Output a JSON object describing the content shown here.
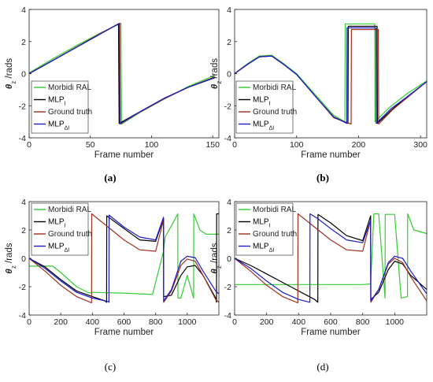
{
  "panels": [
    {
      "caption": "(a)"
    },
    {
      "caption": "(b)"
    },
    {
      "caption": "(c)"
    },
    {
      "caption": "(d)"
    }
  ],
  "colors": {
    "morbidi": "#33cc33",
    "mlp_i": "#000000",
    "ground_truth": "#a0301c",
    "mlp_di": "#1a1acc",
    "pink": "#ff5577"
  },
  "chart_data": [
    {
      "type": "line",
      "xlabel": "Frame number",
      "ylabel": "θz /rads",
      "xlim": [
        0,
        155
      ],
      "ylim": [
        -4,
        4
      ],
      "xticks": [
        0,
        50,
        100,
        150
      ],
      "yticks": [
        -4,
        -2,
        0,
        2,
        4
      ],
      "legend_position": "bottom-left",
      "series": [
        {
          "name": "Morbidi RAL",
          "key": "morbidi",
          "x": [
            0,
            20,
            40,
            60,
            75,
            75.5,
            90,
            110,
            130,
            152
          ],
          "y": [
            0.05,
            0.95,
            1.8,
            2.6,
            3.14,
            -3.14,
            -2.45,
            -1.6,
            -0.8,
            -0.1
          ]
        },
        {
          "name": "MLP_I",
          "key": "mlp_i",
          "x": [
            0,
            20,
            40,
            60,
            73,
            73.5,
            90,
            110,
            130,
            152
          ],
          "y": [
            0.0,
            0.85,
            1.7,
            2.55,
            3.1,
            -3.1,
            -2.4,
            -1.55,
            -0.85,
            -0.25
          ]
        },
        {
          "name": "Ground truth",
          "key": "ground_truth",
          "x": [
            0,
            20,
            40,
            60,
            74,
            74.5,
            90,
            110,
            130,
            152
          ],
          "y": [
            0.0,
            0.85,
            1.72,
            2.58,
            3.14,
            -3.14,
            -2.42,
            -1.58,
            -0.85,
            -0.2
          ]
        },
        {
          "name": "MLP_ΔI",
          "key": "mlp_di",
          "x": [
            0,
            20,
            40,
            60,
            73.5,
            74,
            90,
            110,
            130,
            152
          ],
          "y": [
            0.0,
            0.85,
            1.7,
            2.55,
            3.12,
            -3.12,
            -2.4,
            -1.55,
            -0.85,
            -0.22
          ]
        }
      ]
    },
    {
      "type": "line",
      "xlabel": "Frame number",
      "ylabel": "θz /rads",
      "xlim": [
        0,
        310
      ],
      "ylim": [
        -4,
        4
      ],
      "xticks": [
        0,
        100,
        200,
        300
      ],
      "yticks": [
        -4,
        -2,
        0,
        2,
        4
      ],
      "legend_position": "bottom-left",
      "series": [
        {
          "name": "Morbidi RAL",
          "key": "morbidi",
          "x": [
            0,
            20,
            40,
            60,
            80,
            100,
            130,
            160,
            178,
            178.5,
            226,
            226.5,
            250,
            280,
            310
          ],
          "y": [
            0.0,
            0.6,
            1.1,
            1.15,
            0.6,
            0.0,
            -1.3,
            -2.6,
            -3.0,
            3.1,
            3.1,
            -3.0,
            -2.1,
            -1.2,
            -0.45
          ]
        },
        {
          "name": "MLP_I",
          "key": "mlp_i",
          "x": [
            0,
            20,
            40,
            60,
            80,
            100,
            130,
            160,
            183,
            183.5,
            230,
            230.5,
            255,
            280,
            310
          ],
          "y": [
            0.0,
            0.55,
            1.05,
            1.1,
            0.55,
            -0.05,
            -1.4,
            -2.7,
            -3.1,
            2.95,
            2.95,
            -3.1,
            -2.2,
            -1.4,
            -0.5
          ]
        },
        {
          "name": "Ground truth",
          "key": "ground_truth",
          "x": [
            0,
            20,
            40,
            60,
            80,
            100,
            130,
            160,
            188,
            188.5,
            232,
            232.5,
            255,
            280,
            310
          ],
          "y": [
            0.0,
            0.55,
            1.05,
            1.1,
            0.55,
            -0.05,
            -1.4,
            -2.75,
            -3.14,
            2.75,
            2.75,
            -3.14,
            -2.25,
            -1.45,
            -0.5
          ]
        },
        {
          "name": "MLP_ΔI",
          "key": "mlp_di",
          "x": [
            0,
            20,
            40,
            60,
            80,
            100,
            130,
            160,
            181,
            181.5,
            228,
            228.5,
            252,
            280,
            310
          ],
          "y": [
            0.0,
            0.55,
            1.05,
            1.1,
            0.55,
            -0.05,
            -1.4,
            -2.7,
            -3.1,
            2.85,
            2.85,
            -3.1,
            -2.2,
            -1.4,
            -0.5
          ]
        }
      ]
    },
    {
      "type": "line",
      "xlabel": "Frame number",
      "ylabel": "θz /rads",
      "xlim": [
        0,
        1200
      ],
      "ylim": [
        -4,
        4
      ],
      "xticks": [
        0,
        200,
        400,
        600,
        800,
        1000
      ],
      "yticks": [
        -4,
        -2,
        0,
        2,
        4
      ],
      "legend_position": "top-left",
      "series": [
        {
          "name": "Morbidi RAL",
          "key": "morbidi",
          "x": [
            0,
            150,
            200,
            300,
            380,
            400,
            600,
            780,
            850,
            860,
            900,
            940,
            941,
            960,
            1000,
            1040,
            1041,
            1080,
            1120,
            1200
          ],
          "y": [
            -0.55,
            -0.55,
            -1.0,
            -2.0,
            -2.45,
            -2.4,
            -2.45,
            -2.55,
            0.5,
            1.5,
            2.3,
            3.14,
            -2.8,
            -2.8,
            -1.2,
            -2.8,
            3.14,
            2.0,
            1.7,
            1.7
          ]
        },
        {
          "name": "MLP_I",
          "key": "mlp_i",
          "x": [
            0,
            100,
            200,
            300,
            400,
            480,
            490,
            491,
            600,
            700,
            800,
            850,
            851,
            900,
            960,
            1000,
            1050,
            1100,
            1180,
            1185,
            1186,
            1200
          ],
          "y": [
            0.0,
            -0.6,
            -1.5,
            -2.3,
            -2.7,
            -3.0,
            -3.1,
            3.0,
            2.1,
            1.3,
            1.2,
            2.8,
            -2.7,
            -2.6,
            -1.2,
            -0.6,
            -0.5,
            -1.2,
            -2.8,
            -3.1,
            3.14,
            3.14
          ]
        },
        {
          "name": "Ground truth",
          "key": "ground_truth",
          "x": [
            0,
            100,
            200,
            300,
            395,
            396,
            500,
            600,
            700,
            800,
            850,
            851,
            900,
            960,
            1000,
            1050,
            1100,
            1180,
            1200
          ],
          "y": [
            0.0,
            -0.9,
            -1.9,
            -2.7,
            -3.14,
            3.14,
            2.2,
            1.3,
            0.6,
            0.5,
            2.7,
            -3.1,
            -2.3,
            -0.5,
            -0.05,
            -0.2,
            -1.2,
            -2.9,
            -3.1
          ]
        },
        {
          "name": "MLP_ΔI",
          "key": "mlp_di",
          "x": [
            0,
            100,
            200,
            300,
            400,
            500,
            505,
            506,
            600,
            700,
            800,
            850,
            851,
            900,
            960,
            1000,
            1050,
            1100,
            1180,
            1200
          ],
          "y": [
            0.0,
            -0.7,
            -1.6,
            -2.4,
            -2.8,
            -3.05,
            -3.1,
            3.05,
            2.2,
            1.5,
            1.3,
            2.9,
            -3.0,
            -2.2,
            -0.2,
            0.15,
            0.05,
            -0.9,
            -2.3,
            -2.5
          ]
        }
      ]
    },
    {
      "type": "line",
      "xlabel": "Frame number",
      "ylabel": "θz /rads",
      "xlim": [
        0,
        1200
      ],
      "ylim": [
        -4,
        4
      ],
      "xticks": [
        0,
        200,
        400,
        600,
        800,
        1000
      ],
      "yticks": [
        -4,
        -2,
        0,
        2,
        4
      ],
      "legend_position": "top-left",
      "series": [
        {
          "name": "Morbidi RAL",
          "key": "morbidi",
          "x": [
            0,
            200,
            400,
            600,
            800,
            850,
            870,
            900,
            940,
            941,
            1000,
            1040,
            1080,
            1081,
            1120,
            1200
          ],
          "y": [
            -1.85,
            -1.85,
            -1.85,
            -1.85,
            -1.85,
            -1.8,
            3.14,
            3.14,
            -2.8,
            3.1,
            3.1,
            -2.8,
            -2.7,
            3.14,
            2.0,
            1.75
          ]
        },
        {
          "name": "MLP_I",
          "key": "mlp_i",
          "x": [
            0,
            100,
            200,
            300,
            400,
            500,
            520,
            521,
            600,
            700,
            800,
            850,
            851,
            900,
            960,
            1000,
            1050,
            1100,
            1200
          ],
          "y": [
            0.0,
            -0.5,
            -1.1,
            -1.7,
            -2.3,
            -2.9,
            -3.1,
            3.1,
            2.5,
            1.6,
            1.25,
            3.0,
            -2.9,
            -2.4,
            -0.8,
            -0.2,
            -0.4,
            -1.2,
            -2.2
          ]
        },
        {
          "name": "Ground truth",
          "key": "ground_truth",
          "x": [
            0,
            100,
            200,
            300,
            395,
            396,
            500,
            600,
            700,
            800,
            850,
            851,
            900,
            960,
            1000,
            1050,
            1100,
            1200
          ],
          "y": [
            0.0,
            -0.9,
            -1.9,
            -2.7,
            -3.14,
            3.14,
            2.2,
            1.3,
            0.6,
            0.5,
            2.7,
            -3.1,
            -2.2,
            -0.4,
            0.0,
            -0.3,
            -1.3,
            -3.0
          ]
        },
        {
          "name": "MLP_ΔI",
          "key": "mlp_di",
          "x": [
            0,
            100,
            200,
            300,
            400,
            470,
            471,
            520,
            600,
            700,
            800,
            850,
            851,
            900,
            960,
            1000,
            1050,
            1100,
            1200
          ],
          "y": [
            0.0,
            -0.7,
            -1.6,
            -2.4,
            -2.9,
            -3.1,
            3.14,
            2.8,
            2.1,
            1.3,
            1.1,
            2.7,
            -3.0,
            -2.2,
            -0.3,
            0.15,
            0.0,
            -0.9,
            -2.5
          ]
        }
      ]
    }
  ]
}
